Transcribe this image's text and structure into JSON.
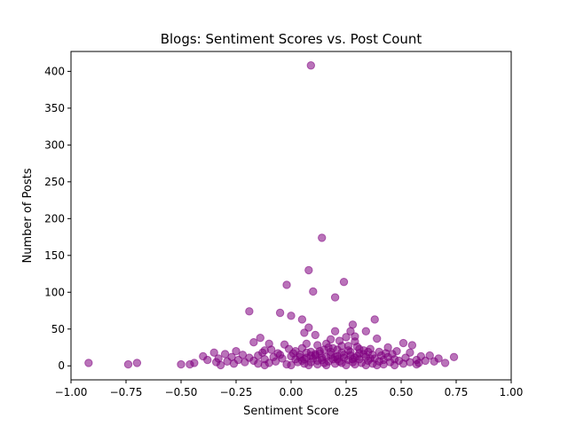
{
  "chart_data": {
    "type": "scatter",
    "title": "Blogs: Sentiment Scores vs. Post Count",
    "xlabel": "Sentiment Score",
    "ylabel": "Number of Posts",
    "xlim": [
      -1.0,
      1.0
    ],
    "ylim": [
      -19,
      427
    ],
    "x_ticks": [
      -1.0,
      -0.75,
      -0.5,
      -0.25,
      0.0,
      0.25,
      0.5,
      0.75,
      1.0
    ],
    "x_tick_labels": [
      "−1.00",
      "−0.75",
      "−0.50",
      "−0.25",
      "0.00",
      "0.25",
      "0.50",
      "0.75",
      "1.00"
    ],
    "y_ticks": [
      0,
      50,
      100,
      150,
      200,
      250,
      300,
      350,
      400
    ],
    "y_tick_labels": [
      "0",
      "50",
      "100",
      "150",
      "200",
      "250",
      "300",
      "350",
      "400"
    ],
    "grid": false,
    "legend": "none",
    "colors": {
      "point": "#800080",
      "axis": "#000000",
      "background": "#ffffff"
    },
    "series": [
      {
        "points": [
          [
            0.09,
            408
          ],
          [
            0.14,
            174
          ],
          [
            0.08,
            130
          ],
          [
            0.24,
            114
          ],
          [
            -0.02,
            110
          ],
          [
            0.1,
            101
          ],
          [
            0.2,
            93
          ],
          [
            -0.19,
            74
          ],
          [
            -0.05,
            72
          ],
          [
            0.0,
            68
          ],
          [
            0.05,
            63
          ],
          [
            0.38,
            63
          ],
          [
            0.28,
            56
          ],
          [
            0.08,
            52
          ],
          [
            0.34,
            47
          ],
          [
            0.2,
            47
          ],
          [
            0.27,
            47
          ],
          [
            0.06,
            45
          ],
          [
            0.11,
            42
          ],
          [
            0.29,
            40
          ],
          [
            0.25,
            39
          ],
          [
            -0.14,
            38
          ],
          [
            0.39,
            37
          ],
          [
            0.18,
            36
          ],
          [
            0.22,
            34
          ],
          [
            0.29,
            33
          ],
          [
            -0.17,
            32
          ],
          [
            0.51,
            31
          ],
          [
            0.07,
            30
          ],
          [
            -0.1,
            30
          ],
          [
            -0.03,
            29
          ],
          [
            0.55,
            28
          ],
          [
            0.12,
            28
          ],
          [
            0.26,
            27
          ],
          [
            0.3,
            26
          ],
          [
            0.44,
            25
          ],
          [
            0.17,
            25
          ],
          [
            0.05,
            24
          ],
          [
            -0.01,
            23
          ],
          [
            0.36,
            23
          ],
          [
            0.21,
            22
          ],
          [
            0.15,
            22
          ],
          [
            -0.12,
            21
          ],
          [
            0.33,
            21
          ],
          [
            0.48,
            20
          ],
          [
            0.02,
            20
          ],
          [
            -0.25,
            20
          ],
          [
            0.09,
            19
          ],
          [
            0.4,
            19
          ],
          [
            0.54,
            18
          ],
          [
            0.23,
            18
          ],
          [
            -0.35,
            18
          ],
          [
            0.31,
            17
          ],
          [
            -0.06,
            17
          ],
          [
            0.13,
            17
          ],
          [
            -0.3,
            16
          ],
          [
            0.46,
            16
          ],
          [
            0.18,
            15
          ],
          [
            0.04,
            15
          ],
          [
            -0.22,
            15
          ],
          [
            0.37,
            15
          ],
          [
            0.27,
            14
          ],
          [
            0.63,
            14
          ],
          [
            -0.15,
            14
          ],
          [
            0.11,
            14
          ],
          [
            -0.4,
            13
          ],
          [
            0.59,
            13
          ],
          [
            0.21,
            13
          ],
          [
            0.0,
            13
          ],
          [
            0.34,
            12
          ],
          [
            -0.08,
            12
          ],
          [
            0.16,
            12
          ],
          [
            0.44,
            12
          ],
          [
            0.74,
            12
          ],
          [
            -0.27,
            12
          ],
          [
            0.29,
            11
          ],
          [
            0.07,
            11
          ],
          [
            0.52,
            11
          ],
          [
            -0.19,
            11
          ],
          [
            0.24,
            11
          ],
          [
            0.38,
            10
          ],
          [
            -0.33,
            10
          ],
          [
            0.1,
            10
          ],
          [
            0.67,
            10
          ],
          [
            -0.04,
            10
          ],
          [
            0.19,
            9
          ],
          [
            0.47,
            9
          ],
          [
            -0.12,
            9
          ],
          [
            0.31,
            9
          ],
          [
            0.02,
            9
          ],
          [
            0.57,
            8
          ],
          [
            -0.24,
            8
          ],
          [
            0.14,
            8
          ],
          [
            0.42,
            8
          ],
          [
            -0.38,
            8
          ],
          [
            0.26,
            8
          ],
          [
            0.05,
            7
          ],
          [
            0.61,
            7
          ],
          [
            -0.17,
            7
          ],
          [
            0.35,
            7
          ],
          [
            0.12,
            7
          ],
          [
            0.49,
            7
          ],
          [
            -0.29,
            6
          ],
          [
            0.22,
            6
          ],
          [
            -0.07,
            6
          ],
          [
            0.4,
            6
          ],
          [
            0.17,
            6
          ],
          [
            0.65,
            6
          ],
          [
            0.03,
            5
          ],
          [
            -0.21,
            5
          ],
          [
            0.28,
            5
          ],
          [
            0.54,
            5
          ],
          [
            -0.34,
            5
          ],
          [
            0.09,
            5
          ],
          [
            0.45,
            5
          ],
          [
            -0.1,
            4
          ],
          [
            0.32,
            4
          ],
          [
            0.7,
            4
          ],
          [
            0.15,
            4
          ],
          [
            -0.92,
            4
          ],
          [
            -0.7,
            4
          ],
          [
            0.23,
            4
          ],
          [
            0.58,
            4
          ],
          [
            -0.44,
            4
          ],
          [
            0.06,
            3
          ],
          [
            0.37,
            3
          ],
          [
            -0.15,
            3
          ],
          [
            0.2,
            3
          ],
          [
            0.51,
            3
          ],
          [
            -0.26,
            3
          ],
          [
            0.12,
            2
          ],
          [
            0.42,
            2
          ],
          [
            -0.02,
            2
          ],
          [
            0.29,
            2
          ],
          [
            -0.74,
            2
          ],
          [
            0.57,
            2
          ],
          [
            -0.5,
            2
          ],
          [
            -0.46,
            2
          ],
          [
            0.34,
            1
          ],
          [
            0.08,
            1
          ],
          [
            -0.32,
            1
          ],
          [
            0.25,
            1
          ],
          [
            0.16,
            1
          ],
          [
            0.47,
            1
          ],
          [
            0.0,
            1
          ],
          [
            -0.12,
            1
          ],
          [
            0.39,
            1
          ],
          [
            0.13,
            20
          ],
          [
            0.19,
            24
          ],
          [
            0.27,
            19
          ],
          [
            0.33,
            16
          ],
          [
            0.07,
            18
          ],
          [
            -0.05,
            15
          ],
          [
            0.23,
            27
          ],
          [
            0.11,
            16
          ],
          [
            0.3,
            13
          ],
          [
            0.16,
            30
          ],
          [
            0.04,
            12
          ],
          [
            0.36,
            10
          ],
          [
            0.21,
            9
          ],
          [
            -0.09,
            22
          ],
          [
            0.26,
            21
          ],
          [
            0.14,
            11
          ],
          [
            0.41,
            14
          ],
          [
            0.01,
            17
          ],
          [
            0.18,
            19
          ],
          [
            0.31,
            23
          ],
          [
            0.09,
            14
          ],
          [
            -0.13,
            18
          ],
          [
            0.24,
            15
          ],
          [
            0.35,
            19
          ],
          [
            0.06,
            9
          ],
          [
            0.2,
            12
          ],
          [
            0.43,
            17
          ],
          [
            0.28,
            9
          ]
        ]
      }
    ]
  }
}
